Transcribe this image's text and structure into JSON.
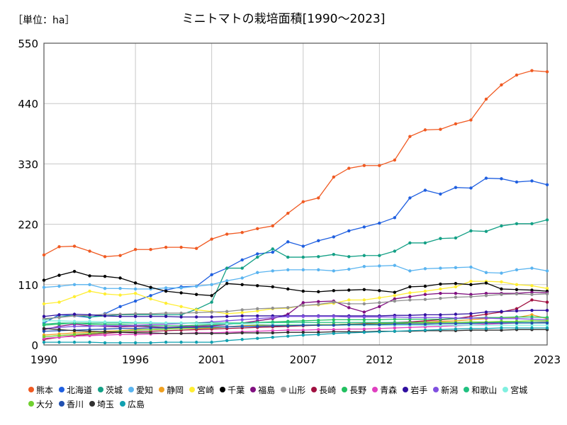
{
  "chart_data": {
    "type": "line",
    "title": "ミニトマトの栽培面積[1990～2023]",
    "unit_label": "［単位：ha］",
    "x": [
      1990,
      1991,
      1992,
      1993,
      1994,
      1995,
      1996,
      1997,
      1998,
      1999,
      2000,
      2001,
      2002,
      2003,
      2004,
      2005,
      2006,
      2007,
      2008,
      2009,
      2010,
      2011,
      2012,
      2013,
      2014,
      2015,
      2016,
      2017,
      2018,
      2019,
      2020,
      2021,
      2022,
      2023
    ],
    "x_ticks": [
      1990,
      1996,
      2001,
      2007,
      2012,
      2018,
      2023
    ],
    "y_ticks": [
      0,
      110,
      220,
      330,
      440,
      550
    ],
    "ylim": [
      0,
      550
    ],
    "grid": true,
    "legend_position": "bottom",
    "series": [
      {
        "name": "熊本",
        "color": "#f05a22",
        "values": [
          164,
          179,
          180,
          171,
          161,
          163,
          174,
          174,
          178,
          178,
          176,
          193,
          202,
          205,
          212,
          217,
          240,
          261,
          268,
          306,
          322,
          327,
          327,
          337,
          380,
          392,
          393,
          403,
          410,
          448,
          474,
          492,
          500,
          498
        ]
      },
      {
        "name": "北海道",
        "color": "#1f5fe0",
        "values": [
          40,
          55,
          53,
          50,
          57,
          70,
          80,
          90,
          100,
          106,
          107,
          128,
          140,
          155,
          166,
          169,
          188,
          180,
          190,
          197,
          208,
          215,
          222,
          232,
          268,
          282,
          275,
          287,
          286,
          304,
          303,
          297,
          299,
          292
        ]
      },
      {
        "name": "茨城",
        "color": "#14a086",
        "values": [
          46,
          51,
          54,
          51,
          53,
          55,
          55,
          55,
          55,
          55,
          65,
          78,
          140,
          140,
          160,
          175,
          160,
          160,
          161,
          165,
          161,
          163,
          163,
          171,
          186,
          186,
          194,
          195,
          208,
          207,
          217,
          221,
          221,
          228
        ]
      },
      {
        "name": "愛知",
        "color": "#5ab4f0",
        "values": [
          105,
          107,
          110,
          110,
          103,
          103,
          102,
          102,
          104,
          104,
          107,
          110,
          117,
          122,
          132,
          135,
          137,
          137,
          137,
          135,
          138,
          143,
          144,
          145,
          135,
          139,
          140,
          141,
          142,
          132,
          131,
          137,
          140,
          135
        ]
      },
      {
        "name": "静岡",
        "color": "#f0a020",
        "values": [
          18,
          20,
          22,
          23,
          25,
          26,
          28,
          28,
          29,
          30,
          30,
          31,
          33,
          35,
          36,
          36,
          36,
          36,
          37,
          37,
          38,
          38,
          40,
          40,
          40,
          42,
          43,
          44,
          46,
          48,
          50,
          50,
          55,
          48
        ]
      },
      {
        "name": "宮崎",
        "color": "#ffee33",
        "values": [
          75,
          78,
          88,
          98,
          93,
          91,
          94,
          84,
          76,
          70,
          64,
          61,
          57,
          59,
          62,
          66,
          67,
          72,
          73,
          76,
          82,
          82,
          86,
          90,
          95,
          98,
          102,
          106,
          116,
          116,
          115,
          110,
          108,
          103
        ]
      },
      {
        "name": "千葉",
        "color": "#000000",
        "values": [
          118,
          127,
          134,
          126,
          125,
          122,
          113,
          105,
          98,
          95,
          92,
          90,
          112,
          110,
          108,
          106,
          102,
          98,
          97,
          99,
          100,
          101,
          99,
          96,
          106,
          107,
          111,
          112,
          110,
          113,
          102,
          101,
          100,
          98
        ]
      },
      {
        "name": "福島",
        "color": "#801080",
        "values": [
          28,
          34,
          38,
          35,
          34,
          33,
          34,
          33,
          32,
          33,
          34,
          35,
          37,
          40,
          44,
          48,
          56,
          77,
          79,
          80,
          68,
          60,
          70,
          84,
          88,
          92,
          94,
          94,
          92,
          94,
          94,
          94,
          96,
          95
        ]
      },
      {
        "name": "山形",
        "color": "#909090",
        "values": [
          48,
          50,
          53,
          54,
          56,
          56,
          57,
          57,
          58,
          58,
          59,
          60,
          61,
          64,
          66,
          67,
          68,
          72,
          74,
          78,
          75,
          75,
          77,
          80,
          82,
          83,
          85,
          87,
          88,
          90,
          92,
          93,
          92,
          93
        ]
      },
      {
        "name": "長崎",
        "color": "#a01040",
        "values": [
          10,
          14,
          17,
          19,
          21,
          23,
          24,
          25,
          26,
          27,
          28,
          29,
          30,
          31,
          32,
          33,
          34,
          35,
          36,
          37,
          38,
          39,
          40,
          41,
          42,
          44,
          46,
          48,
          52,
          56,
          60,
          66,
          82,
          78
        ]
      },
      {
        "name": "長野",
        "color": "#22c060",
        "values": [
          36,
          38,
          40,
          38,
          37,
          37,
          36,
          35,
          35,
          35,
          36,
          37,
          38,
          40,
          41,
          42,
          43,
          44,
          45,
          46,
          46,
          46,
          46,
          47,
          47,
          47,
          47,
          48,
          49,
          50,
          50,
          51,
          51,
          50
        ]
      },
      {
        "name": "青森",
        "color": "#e040c0",
        "values": [
          12,
          14,
          16,
          17,
          18,
          19,
          19,
          20,
          21,
          21,
          22,
          22,
          23,
          24,
          25,
          26,
          27,
          27,
          28,
          28,
          29,
          29,
          30,
          31,
          32,
          33,
          34,
          35,
          36,
          38,
          39,
          40,
          41,
          42
        ]
      },
      {
        "name": "岩手",
        "color": "#3010a0",
        "values": [
          52,
          55,
          56,
          55,
          53,
          52,
          52,
          52,
          52,
          51,
          51,
          51,
          52,
          53,
          53,
          53,
          53,
          53,
          53,
          53,
          53,
          53,
          53,
          54,
          54,
          55,
          55,
          56,
          57,
          60,
          61,
          62,
          63,
          63
        ]
      },
      {
        "name": "新潟",
        "color": "#8050e0",
        "values": [
          30,
          32,
          34,
          34,
          35,
          35,
          36,
          37,
          38,
          39,
          40,
          42,
          44,
          46,
          48,
          50,
          52,
          52,
          52,
          52,
          51,
          51,
          51,
          51,
          50,
          50,
          50,
          49,
          49,
          49,
          48,
          48,
          47,
          46
        ]
      },
      {
        "name": "和歌山",
        "color": "#20c080",
        "values": [
          38,
          40,
          40,
          40,
          40,
          40,
          40,
          40,
          40,
          40,
          40,
          40,
          40,
          40,
          41,
          41,
          41,
          41,
          41,
          41,
          41,
          41,
          41,
          41,
          41,
          41,
          41,
          41,
          41,
          41,
          41,
          41,
          41,
          41
        ]
      },
      {
        "name": "宮城",
        "color": "#80f0e0",
        "values": [
          44,
          44,
          43,
          43,
          42,
          42,
          41,
          41,
          40,
          40,
          39,
          39,
          38,
          38,
          38,
          37,
          37,
          37,
          37,
          36,
          36,
          36,
          36,
          36,
          36,
          36,
          36,
          36,
          36,
          36,
          36,
          36,
          36,
          36
        ]
      },
      {
        "name": "大分",
        "color": "#70d030",
        "values": [
          15,
          17,
          19,
          21,
          23,
          25,
          27,
          28,
          29,
          30,
          31,
          32,
          33,
          34,
          35,
          35,
          36,
          36,
          37,
          37,
          38,
          38,
          39,
          39,
          40,
          40,
          41,
          41,
          42,
          42,
          43,
          43,
          44,
          44
        ]
      },
      {
        "name": "香川",
        "color": "#2050b0",
        "values": [
          25,
          26,
          27,
          28,
          29,
          30,
          30,
          31,
          31,
          32,
          32,
          33,
          33,
          34,
          34,
          35,
          35,
          36,
          36,
          36,
          37,
          37,
          37,
          38,
          38,
          38,
          39,
          39,
          39,
          40,
          40,
          40,
          40,
          40
        ]
      },
      {
        "name": "埼玉",
        "color": "#303030",
        "values": [
          30,
          28,
          26,
          25,
          24,
          23,
          22,
          22,
          21,
          21,
          21,
          21,
          21,
          22,
          22,
          22,
          23,
          23,
          23,
          24,
          24,
          24,
          25,
          25,
          25,
          26,
          26,
          26,
          27,
          27,
          27,
          28,
          28,
          28
        ]
      },
      {
        "name": "広島",
        "color": "#10a0b0",
        "values": [
          5,
          5,
          5,
          5,
          4,
          4,
          4,
          4,
          5,
          5,
          5,
          5,
          8,
          10,
          12,
          14,
          16,
          18,
          19,
          21,
          22,
          23,
          24,
          25,
          26,
          27,
          28,
          29,
          30,
          30,
          31,
          31,
          31,
          31
        ]
      }
    ]
  }
}
